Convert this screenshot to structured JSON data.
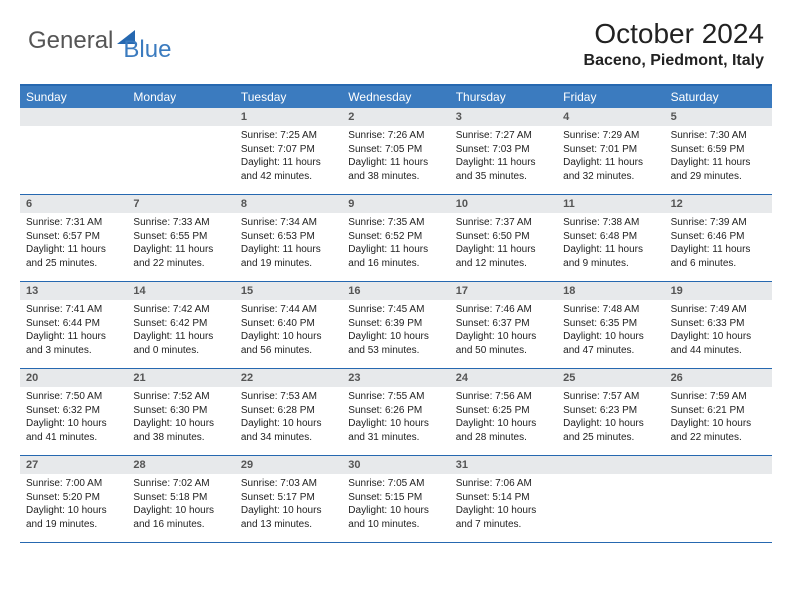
{
  "logo": {
    "text1": "General",
    "text2": "Blue"
  },
  "title": "October 2024",
  "location": "Baceno, Piedmont, Italy",
  "colors": {
    "header_bg": "#3b7bbf",
    "border": "#2668b0",
    "daynum_bg": "#e7e9eb",
    "text": "#222222"
  },
  "day_labels": [
    "Sunday",
    "Monday",
    "Tuesday",
    "Wednesday",
    "Thursday",
    "Friday",
    "Saturday"
  ],
  "weeks": [
    [
      {
        "n": "",
        "sr": "",
        "ss": "",
        "dl": ""
      },
      {
        "n": "",
        "sr": "",
        "ss": "",
        "dl": ""
      },
      {
        "n": "1",
        "sr": "Sunrise: 7:25 AM",
        "ss": "Sunset: 7:07 PM",
        "dl": "Daylight: 11 hours and 42 minutes."
      },
      {
        "n": "2",
        "sr": "Sunrise: 7:26 AM",
        "ss": "Sunset: 7:05 PM",
        "dl": "Daylight: 11 hours and 38 minutes."
      },
      {
        "n": "3",
        "sr": "Sunrise: 7:27 AM",
        "ss": "Sunset: 7:03 PM",
        "dl": "Daylight: 11 hours and 35 minutes."
      },
      {
        "n": "4",
        "sr": "Sunrise: 7:29 AM",
        "ss": "Sunset: 7:01 PM",
        "dl": "Daylight: 11 hours and 32 minutes."
      },
      {
        "n": "5",
        "sr": "Sunrise: 7:30 AM",
        "ss": "Sunset: 6:59 PM",
        "dl": "Daylight: 11 hours and 29 minutes."
      }
    ],
    [
      {
        "n": "6",
        "sr": "Sunrise: 7:31 AM",
        "ss": "Sunset: 6:57 PM",
        "dl": "Daylight: 11 hours and 25 minutes."
      },
      {
        "n": "7",
        "sr": "Sunrise: 7:33 AM",
        "ss": "Sunset: 6:55 PM",
        "dl": "Daylight: 11 hours and 22 minutes."
      },
      {
        "n": "8",
        "sr": "Sunrise: 7:34 AM",
        "ss": "Sunset: 6:53 PM",
        "dl": "Daylight: 11 hours and 19 minutes."
      },
      {
        "n": "9",
        "sr": "Sunrise: 7:35 AM",
        "ss": "Sunset: 6:52 PM",
        "dl": "Daylight: 11 hours and 16 minutes."
      },
      {
        "n": "10",
        "sr": "Sunrise: 7:37 AM",
        "ss": "Sunset: 6:50 PM",
        "dl": "Daylight: 11 hours and 12 minutes."
      },
      {
        "n": "11",
        "sr": "Sunrise: 7:38 AM",
        "ss": "Sunset: 6:48 PM",
        "dl": "Daylight: 11 hours and 9 minutes."
      },
      {
        "n": "12",
        "sr": "Sunrise: 7:39 AM",
        "ss": "Sunset: 6:46 PM",
        "dl": "Daylight: 11 hours and 6 minutes."
      }
    ],
    [
      {
        "n": "13",
        "sr": "Sunrise: 7:41 AM",
        "ss": "Sunset: 6:44 PM",
        "dl": "Daylight: 11 hours and 3 minutes."
      },
      {
        "n": "14",
        "sr": "Sunrise: 7:42 AM",
        "ss": "Sunset: 6:42 PM",
        "dl": "Daylight: 11 hours and 0 minutes."
      },
      {
        "n": "15",
        "sr": "Sunrise: 7:44 AM",
        "ss": "Sunset: 6:40 PM",
        "dl": "Daylight: 10 hours and 56 minutes."
      },
      {
        "n": "16",
        "sr": "Sunrise: 7:45 AM",
        "ss": "Sunset: 6:39 PM",
        "dl": "Daylight: 10 hours and 53 minutes."
      },
      {
        "n": "17",
        "sr": "Sunrise: 7:46 AM",
        "ss": "Sunset: 6:37 PM",
        "dl": "Daylight: 10 hours and 50 minutes."
      },
      {
        "n": "18",
        "sr": "Sunrise: 7:48 AM",
        "ss": "Sunset: 6:35 PM",
        "dl": "Daylight: 10 hours and 47 minutes."
      },
      {
        "n": "19",
        "sr": "Sunrise: 7:49 AM",
        "ss": "Sunset: 6:33 PM",
        "dl": "Daylight: 10 hours and 44 minutes."
      }
    ],
    [
      {
        "n": "20",
        "sr": "Sunrise: 7:50 AM",
        "ss": "Sunset: 6:32 PM",
        "dl": "Daylight: 10 hours and 41 minutes."
      },
      {
        "n": "21",
        "sr": "Sunrise: 7:52 AM",
        "ss": "Sunset: 6:30 PM",
        "dl": "Daylight: 10 hours and 38 minutes."
      },
      {
        "n": "22",
        "sr": "Sunrise: 7:53 AM",
        "ss": "Sunset: 6:28 PM",
        "dl": "Daylight: 10 hours and 34 minutes."
      },
      {
        "n": "23",
        "sr": "Sunrise: 7:55 AM",
        "ss": "Sunset: 6:26 PM",
        "dl": "Daylight: 10 hours and 31 minutes."
      },
      {
        "n": "24",
        "sr": "Sunrise: 7:56 AM",
        "ss": "Sunset: 6:25 PM",
        "dl": "Daylight: 10 hours and 28 minutes."
      },
      {
        "n": "25",
        "sr": "Sunrise: 7:57 AM",
        "ss": "Sunset: 6:23 PM",
        "dl": "Daylight: 10 hours and 25 minutes."
      },
      {
        "n": "26",
        "sr": "Sunrise: 7:59 AM",
        "ss": "Sunset: 6:21 PM",
        "dl": "Daylight: 10 hours and 22 minutes."
      }
    ],
    [
      {
        "n": "27",
        "sr": "Sunrise: 7:00 AM",
        "ss": "Sunset: 5:20 PM",
        "dl": "Daylight: 10 hours and 19 minutes."
      },
      {
        "n": "28",
        "sr": "Sunrise: 7:02 AM",
        "ss": "Sunset: 5:18 PM",
        "dl": "Daylight: 10 hours and 16 minutes."
      },
      {
        "n": "29",
        "sr": "Sunrise: 7:03 AM",
        "ss": "Sunset: 5:17 PM",
        "dl": "Daylight: 10 hours and 13 minutes."
      },
      {
        "n": "30",
        "sr": "Sunrise: 7:05 AM",
        "ss": "Sunset: 5:15 PM",
        "dl": "Daylight: 10 hours and 10 minutes."
      },
      {
        "n": "31",
        "sr": "Sunrise: 7:06 AM",
        "ss": "Sunset: 5:14 PM",
        "dl": "Daylight: 10 hours and 7 minutes."
      },
      {
        "n": "",
        "sr": "",
        "ss": "",
        "dl": ""
      },
      {
        "n": "",
        "sr": "",
        "ss": "",
        "dl": ""
      }
    ]
  ]
}
